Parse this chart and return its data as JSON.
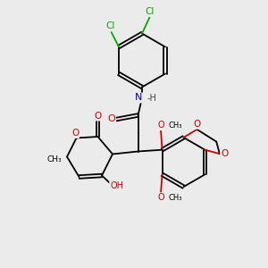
{
  "bg_color": "#ebebeb",
  "atom_color_C": "#000000",
  "atom_color_N": "#0000cc",
  "atom_color_O": "#cc0000",
  "atom_color_Cl": "#00aa00",
  "bond_color": "#000000",
  "bond_width": 1.3,
  "figsize": [
    3.0,
    3.0
  ],
  "dpi": 100,
  "xlim": [
    0,
    10
  ],
  "ylim": [
    0,
    10
  ]
}
